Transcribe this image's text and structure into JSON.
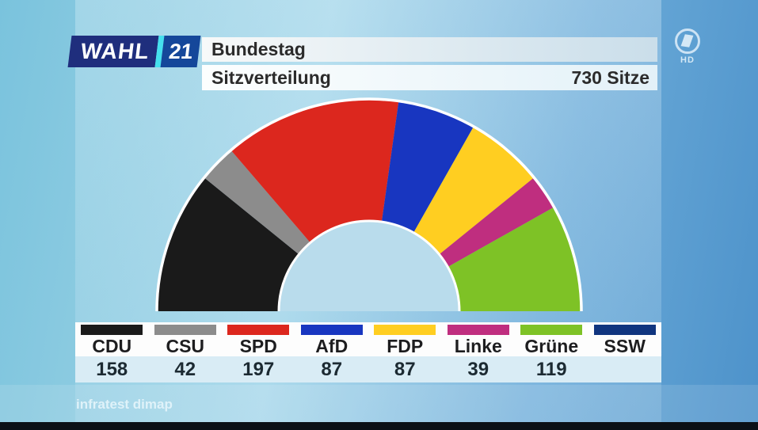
{
  "header": {
    "brand": {
      "wahl": "WAHL",
      "year": "21"
    },
    "title": "Bundestag",
    "subtitle": "Sitzverteilung",
    "total_seats_label": "730 Sitze"
  },
  "channel": {
    "name": "das-erste-ard",
    "hd": "HD"
  },
  "chart_data": {
    "type": "half-donut",
    "title": "Sitzverteilung",
    "total_seats": 730,
    "total_label": "730 Sitze",
    "parties": [
      {
        "name": "CDU",
        "seats": 158,
        "color": "#1a1a1a"
      },
      {
        "name": "CSU",
        "seats": 42,
        "color": "#8c8c8c"
      },
      {
        "name": "SPD",
        "seats": 197,
        "color": "#dc271e"
      },
      {
        "name": "AfD",
        "seats": 87,
        "color": "#1836c0"
      },
      {
        "name": "FDP",
        "seats": 87,
        "color": "#ffce21"
      },
      {
        "name": "Linke",
        "seats": 39,
        "color": "#bf2e7f"
      },
      {
        "name": "Grüne",
        "seats": 119,
        "color": "#7ec226"
      },
      {
        "name": "SSW",
        "seats": null,
        "color": "#10357f"
      }
    ],
    "layout": {
      "start_angle_deg": 180,
      "end_angle_deg": 0,
      "outer_radius_px": 268,
      "inner_radius_px": 114,
      "hole_color": "#b9dcec",
      "rim_color": "#ffffff",
      "legend_position": "bottom"
    }
  },
  "source": "infratest dimap"
}
